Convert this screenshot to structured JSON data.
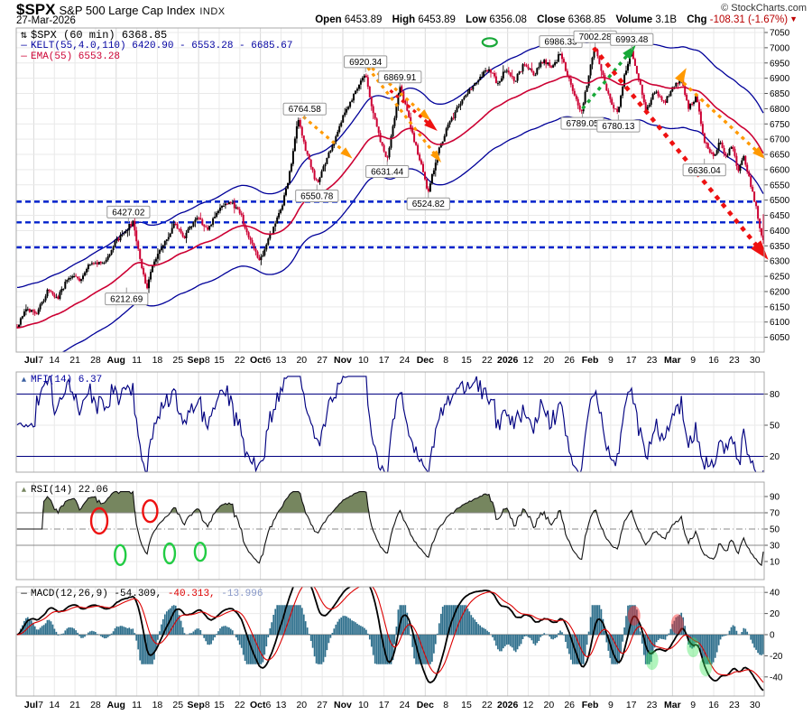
{
  "header": {
    "symbol": "$SPX",
    "name": "S&P 500 Large Cap Index",
    "exchange": "INDX",
    "date": "27-Mar-2026",
    "copyright": "© StockCharts.com",
    "quote": {
      "open_label": "Open",
      "open": "6453.89",
      "high_label": "High",
      "high": "6453.89",
      "low_label": "Low",
      "low": "6356.08",
      "close_label": "Close",
      "close": "6368.85",
      "volume_label": "Volume",
      "volume": "3.1B",
      "chg_label": "Chg",
      "chg": "-108.31 (-1.67%)",
      "chg_dir": "▼"
    }
  },
  "legends": {
    "price_icon": "⇅",
    "price_title": "$SPX (60 min) 6368.85",
    "kelt_icon": "—",
    "kelt": "KELT(55,4.0,110) 6420.90 - 6553.28 - 6685.67",
    "ema_icon": "—",
    "ema": "EMA(55) 6553.28",
    "mfi_icon": "▲",
    "mfi": "MFI(14) 6.37",
    "rsi_icon": "▲",
    "rsi": "RSI(14) 22.06",
    "macd_icon": "—",
    "macd_name": "MACD(12,26,9) -54.309,",
    "macd_v2": " -40.313,",
    "macd_v3": " -13.996"
  },
  "colors": {
    "up": "#000000",
    "down": "#CC0033",
    "ema": "#CC0033",
    "keltner": "#000099",
    "support": "#0022CC",
    "grid": "#E9E9E9",
    "grid_month": "#D8D8D8",
    "border": "#A9A9A9",
    "axis_text": "#000000",
    "mfi_line": "#000080",
    "rsi_line": "#111111",
    "rsi_fill": "#76865F",
    "rsi_hline": "#888888",
    "macd_line": "#000000",
    "macd_signal": "#DD0000",
    "macd_hist": "#2E6F8C",
    "orange": "#FF9900",
    "red": "#EE1111",
    "green": "#18A838"
  },
  "x_ticks": [
    {
      "b": "Jul",
      "t": "7"
    },
    {
      "t": "14"
    },
    {
      "t": "21"
    },
    {
      "t": "28"
    },
    {
      "b": "Aug"
    },
    {
      "t": "11"
    },
    {
      "t": "18"
    },
    {
      "t": "25"
    },
    {
      "b": "Sep",
      "t": "8"
    },
    {
      "t": "15"
    },
    {
      "t": "22"
    },
    {
      "b": "Oct",
      "t": "6"
    },
    {
      "t": "13"
    },
    {
      "t": "20"
    },
    {
      "t": "27"
    },
    {
      "b": "Nov"
    },
    {
      "t": "10"
    },
    {
      "t": "17"
    },
    {
      "t": "24"
    },
    {
      "b": "Dec"
    },
    {
      "t": "8"
    },
    {
      "t": "15"
    },
    {
      "t": "22"
    },
    {
      "b": "2026"
    },
    {
      "t": "12"
    },
    {
      "t": "20"
    },
    {
      "t": "26"
    },
    {
      "b": "Feb"
    },
    {
      "t": "9"
    },
    {
      "t": "17"
    },
    {
      "t": "23"
    },
    {
      "b": "Mar"
    },
    {
      "t": "9"
    },
    {
      "t": "16"
    },
    {
      "t": "23"
    },
    {
      "t": "30"
    }
  ],
  "chart_data": [
    {
      "type": "candlestick",
      "title": "$SPX (60 min) 6368.85",
      "panel": "price",
      "ylim": [
        6050,
        7050
      ],
      "ytick_step": 50,
      "ohlc_last": {
        "open": 6453.89,
        "high": 6453.89,
        "low": 6356.08,
        "close": 6368.85
      },
      "keltner": {
        "period": 55,
        "mult": 4.0,
        "atr": 110,
        "band": 132.4,
        "last": [
          6420.9,
          6553.28,
          6685.67
        ]
      },
      "ema": {
        "period": 55,
        "last": 6553.28
      },
      "support_levels": [
        6495,
        6427,
        6345
      ],
      "anchors": [
        [
          0.0,
          6085
        ],
        [
          0.012,
          6150
        ],
        [
          0.025,
          6120
        ],
        [
          0.04,
          6200
        ],
        [
          0.055,
          6180
        ],
        [
          0.07,
          6255
        ],
        [
          0.085,
          6235
        ],
        [
          0.1,
          6300
        ],
        [
          0.115,
          6290
        ],
        [
          0.13,
          6355
        ],
        [
          0.145,
          6400
        ],
        [
          0.155,
          6427
        ],
        [
          0.162,
          6340
        ],
        [
          0.17,
          6250
        ],
        [
          0.174,
          6213
        ],
        [
          0.183,
          6300
        ],
        [
          0.195,
          6345
        ],
        [
          0.21,
          6420
        ],
        [
          0.225,
          6380
        ],
        [
          0.24,
          6445
        ],
        [
          0.255,
          6405
        ],
        [
          0.27,
          6470
        ],
        [
          0.285,
          6497
        ],
        [
          0.3,
          6450
        ],
        [
          0.312,
          6365
        ],
        [
          0.325,
          6300
        ],
        [
          0.34,
          6390
        ],
        [
          0.355,
          6480
        ],
        [
          0.368,
          6620
        ],
        [
          0.376,
          6765
        ],
        [
          0.384,
          6690
        ],
        [
          0.394,
          6610
        ],
        [
          0.402,
          6551
        ],
        [
          0.412,
          6620
        ],
        [
          0.425,
          6700
        ],
        [
          0.44,
          6790
        ],
        [
          0.455,
          6860
        ],
        [
          0.467,
          6920
        ],
        [
          0.475,
          6810
        ],
        [
          0.486,
          6700
        ],
        [
          0.496,
          6631
        ],
        [
          0.505,
          6760
        ],
        [
          0.513,
          6870
        ],
        [
          0.522,
          6800
        ],
        [
          0.533,
          6690
        ],
        [
          0.543,
          6600
        ],
        [
          0.551,
          6525
        ],
        [
          0.562,
          6640
        ],
        [
          0.575,
          6730
        ],
        [
          0.59,
          6800
        ],
        [
          0.605,
          6855
        ],
        [
          0.62,
          6905
        ],
        [
          0.633,
          6935
        ],
        [
          0.643,
          6880
        ],
        [
          0.655,
          6930
        ],
        [
          0.667,
          6890
        ],
        [
          0.68,
          6950
        ],
        [
          0.692,
          6910
        ],
        [
          0.705,
          6960
        ],
        [
          0.718,
          6935
        ],
        [
          0.728,
          6986
        ],
        [
          0.74,
          6890
        ],
        [
          0.749,
          6830
        ],
        [
          0.757,
          6789
        ],
        [
          0.766,
          6910
        ],
        [
          0.774,
          7002
        ],
        [
          0.783,
          6920
        ],
        [
          0.793,
          6840
        ],
        [
          0.805,
          6780
        ],
        [
          0.814,
          6910
        ],
        [
          0.823,
          6993
        ],
        [
          0.833,
          6900
        ],
        [
          0.843,
          6790
        ],
        [
          0.855,
          6860
        ],
        [
          0.868,
          6820
        ],
        [
          0.88,
          6870
        ],
        [
          0.89,
          6900
        ],
        [
          0.9,
          6800
        ],
        [
          0.91,
          6840
        ],
        [
          0.92,
          6700
        ],
        [
          0.928,
          6660
        ],
        [
          0.934,
          6636
        ],
        [
          0.942,
          6700
        ],
        [
          0.95,
          6640
        ],
        [
          0.958,
          6680
        ],
        [
          0.966,
          6600
        ],
        [
          0.974,
          6640
        ],
        [
          0.982,
          6560
        ],
        [
          0.99,
          6480
        ],
        [
          0.996,
          6400
        ],
        [
          1.0,
          6369
        ]
      ],
      "swing_labels": [
        {
          "t": "6427.02",
          "x": 0.15,
          "p": 6427,
          "s": "a"
        },
        {
          "t": "6212.69",
          "x": 0.174,
          "p": 6213,
          "s": "b",
          "dx": -22
        },
        {
          "t": "6550.78",
          "x": 0.402,
          "p": 6551,
          "s": "b"
        },
        {
          "t": "6764.58",
          "x": 0.376,
          "p": 6765,
          "s": "a",
          "dx": 8
        },
        {
          "t": "6920.34",
          "x": 0.467,
          "p": 6920,
          "s": "a"
        },
        {
          "t": "6869.91",
          "x": 0.513,
          "p": 6870,
          "s": "a"
        },
        {
          "t": "6631.44",
          "x": 0.496,
          "p": 6631,
          "s": "b"
        },
        {
          "t": "6524.82",
          "x": 0.551,
          "p": 6525,
          "s": "b"
        },
        {
          "t": "6986.33",
          "x": 0.728,
          "p": 6986,
          "s": "a"
        },
        {
          "t": "7002.28",
          "x": 0.774,
          "p": 7002,
          "s": "a"
        },
        {
          "t": "6993.48",
          "x": 0.823,
          "p": 6993,
          "s": "a"
        },
        {
          "t": "6789.05",
          "x": 0.757,
          "p": 6789,
          "s": "b"
        },
        {
          "t": "6780.13",
          "x": 0.805,
          "p": 6780,
          "s": "b"
        },
        {
          "t": "6636.04",
          "x": 0.92,
          "p": 6636,
          "s": "b"
        }
      ],
      "arrows": [
        {
          "x1": 0.376,
          "p1": 6790,
          "x2": 0.443,
          "p2": 6650,
          "c": "orange",
          "w": 3.2,
          "hs": 10
        },
        {
          "x1": 0.468,
          "p1": 6950,
          "x2": 0.548,
          "p2": 6775,
          "c": "orange",
          "w": 3.2,
          "hs": 10
        },
        {
          "x1": 0.47,
          "p1": 6935,
          "x2": 0.563,
          "p2": 6640,
          "c": "orange",
          "w": 3.2,
          "hs": 10
        },
        {
          "x1": 0.5,
          "p1": 6860,
          "x2": 0.556,
          "p2": 6742,
          "c": "red",
          "w": 3.2,
          "hs": 11
        },
        {
          "x1": 0.757,
          "p1": 6800,
          "x2": 0.822,
          "p2": 6990,
          "c": "green",
          "w": 3.5,
          "hs": 12
        },
        {
          "x1": 0.772,
          "p1": 7000,
          "x2": 0.997,
          "p2": 6330,
          "c": "red",
          "w": 4.6,
          "hs": 16
        },
        {
          "x1": 0.892,
          "p1": 6885,
          "x2": 0.995,
          "p2": 6650,
          "c": "orange",
          "w": 3.4,
          "hs": 11
        }
      ],
      "ellipses": [
        {
          "x": 0.633,
          "p": 7018,
          "rx": 8,
          "ry": 4.5,
          "c": "green"
        }
      ],
      "markers": [
        {
          "x": 0.891,
          "p": 6912,
          "c": "orange",
          "rot": -60,
          "s": 12
        }
      ]
    },
    {
      "type": "line",
      "panel": "mfi",
      "title": "MFI(14) 6.37",
      "name": "MFI",
      "period": 14,
      "last": 6.37,
      "ylim": [
        0,
        100
      ],
      "yticks": [
        80,
        50,
        20
      ],
      "hlines": [
        80,
        20
      ]
    },
    {
      "type": "line",
      "panel": "rsi",
      "title": "RSI(14) 22.06",
      "name": "RSI",
      "period": 14,
      "last": 22.06,
      "ylim": [
        0,
        100
      ],
      "yticks": [
        90,
        70,
        50,
        30,
        10
      ],
      "hlines": [
        70,
        30
      ],
      "mid_dash": 50,
      "fill_above": 70,
      "ellipses": [
        {
          "x": 0.111,
          "v": 60,
          "rx": 9,
          "ry": 14,
          "c": "red"
        },
        {
          "x": 0.179,
          "v": 72,
          "rx": 8,
          "ry": 12,
          "c": "red"
        },
        {
          "x": 0.139,
          "v": 18,
          "rx": 6,
          "ry": 11,
          "c": "green"
        },
        {
          "x": 0.205,
          "v": 20,
          "rx": 6,
          "ry": 11,
          "c": "green"
        },
        {
          "x": 0.246,
          "v": 22,
          "rx": 6,
          "ry": 10,
          "c": "green"
        }
      ]
    },
    {
      "type": "line+histogram",
      "panel": "macd",
      "title": "MACD(12,26,9) -54.309, -40.313, -13.996",
      "name": "MACD",
      "params": [
        12,
        26,
        9
      ],
      "last": [
        -54.309,
        -40.313,
        -13.996
      ],
      "ylim": [
        -55,
        45
      ],
      "yticks": [
        40,
        20,
        0,
        -20,
        -40
      ],
      "ellipses": [
        {
          "x": 0.826,
          "v": 18,
          "c": "red"
        },
        {
          "x": 0.884,
          "v": 10,
          "c": "red"
        },
        {
          "x": 0.85,
          "v": -24,
          "c": "green"
        },
        {
          "x": 0.905,
          "v": -12,
          "c": "green"
        },
        {
          "x": 0.922,
          "v": -30,
          "c": "green"
        }
      ]
    }
  ]
}
